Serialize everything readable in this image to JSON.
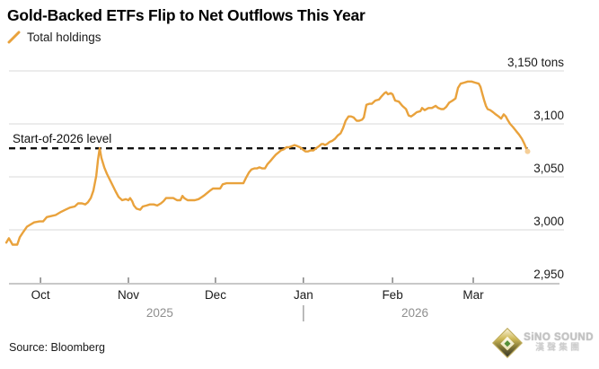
{
  "footer": {
    "source": "Source: Bloomberg"
  },
  "logo": {
    "name": "SiNO SOUND",
    "subtitle": "漢聲集團"
  },
  "chart_data": {
    "type": "line",
    "title": "Gold-Backed ETFs Flip to Net Outflows This Year",
    "unit": "tons",
    "grid": "horizontal",
    "legend_position": "top-left",
    "y_range": [
      2950,
      3150
    ],
    "y_ticks": [
      {
        "value": 3150,
        "label": "3,150 tons"
      },
      {
        "value": 3100,
        "label": "3,100"
      },
      {
        "value": 3050,
        "label": "3,050"
      },
      {
        "value": 3000,
        "label": "3,000"
      },
      {
        "value": 2950,
        "label": "2,950"
      }
    ],
    "x_range_days": [
      0,
      181.4
    ],
    "x_ticks": [
      {
        "label": "Oct",
        "day": 11.9
      },
      {
        "label": "Nov",
        "day": 42.5
      },
      {
        "label": "Dec",
        "day": 72.8
      },
      {
        "label": "Jan",
        "day": 103.4
      },
      {
        "label": "Feb",
        "day": 134.4
      },
      {
        "label": "Mar",
        "day": 162.5
      }
    ],
    "year_labels": [
      {
        "label": "2025",
        "day": 53.4
      },
      {
        "label": "2026",
        "day": 142.2
      }
    ],
    "year_divider_day": 103.4,
    "reference_line": {
      "label": "Start-of-2026 level",
      "value": 3077
    },
    "series": [
      {
        "name": "Total holdings",
        "color": "#E9A23C",
        "points": [
          [
            0,
            2988
          ],
          [
            0.9,
            2992
          ],
          [
            2.2,
            2986
          ],
          [
            3.8,
            2986
          ],
          [
            4.7,
            2993
          ],
          [
            5.9,
            2998
          ],
          [
            7.2,
            3003
          ],
          [
            8.4,
            3005
          ],
          [
            9.7,
            3007
          ],
          [
            11.6,
            3008
          ],
          [
            12.8,
            3008
          ],
          [
            14.1,
            3012
          ],
          [
            15.6,
            3013
          ],
          [
            17.2,
            3014
          ],
          [
            19.1,
            3017
          ],
          [
            20.6,
            3019
          ],
          [
            22.2,
            3021
          ],
          [
            23.8,
            3022
          ],
          [
            25,
            3025
          ],
          [
            26.3,
            3025
          ],
          [
            27.5,
            3024
          ],
          [
            28.4,
            3026
          ],
          [
            29.4,
            3030
          ],
          [
            30.3,
            3037
          ],
          [
            31.3,
            3051
          ],
          [
            31.9,
            3066
          ],
          [
            32.5,
            3077
          ],
          [
            33.1,
            3068
          ],
          [
            34.1,
            3059
          ],
          [
            35,
            3053
          ],
          [
            35.9,
            3048
          ],
          [
            37.2,
            3041
          ],
          [
            38.1,
            3036
          ],
          [
            39.1,
            3031
          ],
          [
            40.3,
            3028
          ],
          [
            41.6,
            3029
          ],
          [
            42.5,
            3028
          ],
          [
            43.1,
            3030
          ],
          [
            43.8,
            3027
          ],
          [
            44.4,
            3023
          ],
          [
            45.3,
            3020
          ],
          [
            46.6,
            3019
          ],
          [
            47.5,
            3022
          ],
          [
            48.8,
            3023
          ],
          [
            50,
            3024
          ],
          [
            51.3,
            3024
          ],
          [
            52.5,
            3023
          ],
          [
            53.8,
            3025
          ],
          [
            54.7,
            3027
          ],
          [
            55.6,
            3030
          ],
          [
            56.9,
            3030
          ],
          [
            58.1,
            3030
          ],
          [
            59.4,
            3028
          ],
          [
            60.6,
            3028
          ],
          [
            61.3,
            3032
          ],
          [
            61.9,
            3030
          ],
          [
            63.1,
            3028
          ],
          [
            64.4,
            3028
          ],
          [
            65.6,
            3028
          ],
          [
            66.9,
            3029
          ],
          [
            68.1,
            3031
          ],
          [
            69.1,
            3033
          ],
          [
            70,
            3035
          ],
          [
            70.9,
            3037
          ],
          [
            71.9,
            3039
          ],
          [
            73.1,
            3039
          ],
          [
            74.4,
            3039
          ],
          [
            75.3,
            3043
          ],
          [
            76.6,
            3044
          ],
          [
            77.8,
            3044
          ],
          [
            79.1,
            3044
          ],
          [
            80.3,
            3044
          ],
          [
            81.6,
            3044
          ],
          [
            82.5,
            3044
          ],
          [
            83.4,
            3049
          ],
          [
            84.4,
            3054
          ],
          [
            85.3,
            3057
          ],
          [
            86.3,
            3058
          ],
          [
            87.2,
            3058
          ],
          [
            88.1,
            3059
          ],
          [
            89.1,
            3058
          ],
          [
            90,
            3058
          ],
          [
            90.9,
            3062
          ],
          [
            91.9,
            3065
          ],
          [
            92.8,
            3068
          ],
          [
            93.8,
            3071
          ],
          [
            94.7,
            3073
          ],
          [
            95.6,
            3075
          ],
          [
            96.6,
            3076
          ],
          [
            97.5,
            3078
          ],
          [
            98.4,
            3078
          ],
          [
            99.4,
            3079
          ],
          [
            100.3,
            3080
          ],
          [
            101.3,
            3079
          ],
          [
            102.2,
            3078
          ],
          [
            103.1,
            3076
          ],
          [
            104.1,
            3074
          ],
          [
            105,
            3074
          ],
          [
            105.9,
            3075
          ],
          [
            106.9,
            3075
          ],
          [
            107.8,
            3077
          ],
          [
            108.8,
            3079
          ],
          [
            109.7,
            3081
          ],
          [
            110.3,
            3081
          ],
          [
            110.9,
            3080
          ],
          [
            111.6,
            3081
          ],
          [
            112.5,
            3083
          ],
          [
            113.4,
            3084
          ],
          [
            114.4,
            3086
          ],
          [
            115.3,
            3089
          ],
          [
            116.3,
            3091
          ],
          [
            117.2,
            3096
          ],
          [
            118.1,
            3103
          ],
          [
            119.1,
            3107
          ],
          [
            120,
            3107
          ],
          [
            120.9,
            3106
          ],
          [
            121.9,
            3103
          ],
          [
            122.8,
            3103
          ],
          [
            123.8,
            3104
          ],
          [
            124.4,
            3106
          ],
          [
            125.3,
            3118
          ],
          [
            126.3,
            3119
          ],
          [
            127.2,
            3119
          ],
          [
            128.4,
            3122
          ],
          [
            129.7,
            3123
          ],
          [
            130.6,
            3126
          ],
          [
            131.6,
            3129
          ],
          [
            132.2,
            3130
          ],
          [
            132.8,
            3128
          ],
          [
            133.8,
            3129
          ],
          [
            134.4,
            3128
          ],
          [
            135.3,
            3122
          ],
          [
            136.6,
            3121
          ],
          [
            137.8,
            3117
          ],
          [
            139.1,
            3114
          ],
          [
            140,
            3108
          ],
          [
            140.9,
            3107
          ],
          [
            141.9,
            3109
          ],
          [
            142.8,
            3111
          ],
          [
            144.1,
            3112
          ],
          [
            144.7,
            3115
          ],
          [
            145.6,
            3113
          ],
          [
            146.9,
            3115
          ],
          [
            148.1,
            3115
          ],
          [
            149.4,
            3117
          ],
          [
            150.3,
            3115
          ],
          [
            151.3,
            3114
          ],
          [
            152.2,
            3114
          ],
          [
            153.1,
            3116
          ],
          [
            154.1,
            3120
          ],
          [
            155.3,
            3122
          ],
          [
            156.3,
            3124
          ],
          [
            157.2,
            3134
          ],
          [
            158.1,
            3138
          ],
          [
            159.4,
            3139
          ],
          [
            160.6,
            3140
          ],
          [
            161.9,
            3140
          ],
          [
            163.1,
            3139
          ],
          [
            164.4,
            3138
          ],
          [
            165,
            3135
          ],
          [
            165.6,
            3129
          ],
          [
            166.3,
            3122
          ],
          [
            166.9,
            3117
          ],
          [
            167.5,
            3114
          ],
          [
            168.4,
            3113
          ],
          [
            169.4,
            3111
          ],
          [
            170.3,
            3109
          ],
          [
            171.3,
            3107
          ],
          [
            172.2,
            3105
          ],
          [
            173.1,
            3109
          ],
          [
            173.8,
            3107
          ],
          [
            174.4,
            3104
          ],
          [
            175.3,
            3100
          ],
          [
            176.3,
            3097
          ],
          [
            177.5,
            3093
          ],
          [
            178.4,
            3090
          ],
          [
            179.4,
            3086
          ],
          [
            180.3,
            3081
          ],
          [
            180.9,
            3077
          ],
          [
            181.4,
            3074
          ]
        ]
      }
    ]
  }
}
